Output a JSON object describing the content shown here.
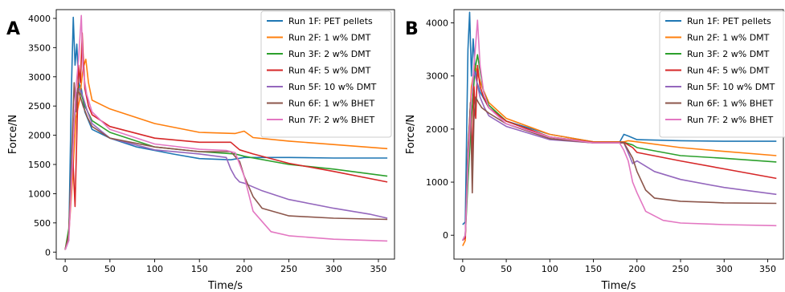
{
  "chart_data": [
    {
      "type": "line",
      "panel_label": "A",
      "xlabel": "Time/s",
      "ylabel": "Force/N",
      "xlim": [
        -10,
        368
      ],
      "ylim": [
        -120,
        4150
      ],
      "xticks": [
        0,
        50,
        100,
        150,
        200,
        250,
        300,
        350
      ],
      "yticks": [
        0,
        500,
        1000,
        1500,
        2000,
        2500,
        3000,
        3500,
        4000
      ],
      "grid": false,
      "legend_position": "top-right",
      "series": [
        {
          "name": "Run 1F: PET pellets",
          "color": "#1f77b4",
          "x": [
            0,
            4,
            7,
            9,
            11,
            13,
            15,
            18,
            22,
            30,
            50,
            80,
            120,
            150,
            185,
            200,
            250,
            300,
            360
          ],
          "y": [
            40,
            200,
            2800,
            4020,
            3200,
            3560,
            2900,
            2800,
            2400,
            2100,
            1950,
            1800,
            1680,
            1600,
            1580,
            1620,
            1620,
            1610,
            1610
          ]
        },
        {
          "name": "Run 2F: 1 w% DMT",
          "color": "#ff7f0e",
          "x": [
            0,
            4,
            8,
            12,
            16,
            20,
            23,
            26,
            30,
            50,
            100,
            150,
            190,
            200,
            210,
            250,
            300,
            360
          ],
          "y": [
            40,
            300,
            1200,
            2300,
            2600,
            3150,
            3300,
            2900,
            2600,
            2450,
            2200,
            2050,
            2030,
            2070,
            1960,
            1900,
            1840,
            1770
          ]
        },
        {
          "name": "Run 3F: 2 w% DMT",
          "color": "#2ca02c",
          "x": [
            0,
            4,
            8,
            12,
            15,
            18,
            22,
            30,
            50,
            100,
            150,
            190,
            200,
            250,
            300,
            360
          ],
          "y": [
            40,
            400,
            1700,
            2600,
            2850,
            2700,
            2500,
            2250,
            2050,
            1800,
            1720,
            1680,
            1640,
            1500,
            1420,
            1300
          ]
        },
        {
          "name": "Run 4F: 5 w% DMT",
          "color": "#d62728",
          "x": [
            0,
            4,
            8,
            11,
            13,
            15,
            17,
            19,
            20,
            22,
            26,
            30,
            50,
            100,
            150,
            185,
            195,
            210,
            250,
            300,
            360
          ],
          "y": [
            40,
            300,
            1800,
            780,
            2000,
            3200,
            2900,
            3750,
            3400,
            2800,
            2500,
            2350,
            2150,
            1950,
            1880,
            1880,
            1750,
            1680,
            1520,
            1380,
            1200
          ]
        },
        {
          "name": "Run 5F: 10 w% DMT",
          "color": "#9467bd",
          "x": [
            0,
            4,
            8,
            12,
            16,
            20,
            25,
            30,
            50,
            100,
            150,
            180,
            185,
            190,
            195,
            200,
            220,
            250,
            300,
            340,
            360
          ],
          "y": [
            40,
            250,
            1800,
            2700,
            2800,
            2650,
            2400,
            2200,
            1950,
            1750,
            1680,
            1620,
            1420,
            1280,
            1200,
            1180,
            1050,
            900,
            750,
            650,
            580
          ]
        },
        {
          "name": "Run 6F: 1 w% BHET",
          "color": "#8c564b",
          "x": [
            0,
            4,
            8,
            10,
            12,
            14,
            16,
            20,
            25,
            30,
            50,
            100,
            150,
            185,
            195,
            200,
            210,
            220,
            250,
            300,
            360
          ],
          "y": [
            40,
            300,
            2000,
            2900,
            2400,
            2800,
            2700,
            2500,
            2300,
            2150,
            1950,
            1800,
            1720,
            1720,
            1550,
            1300,
            950,
            750,
            620,
            580,
            560
          ]
        },
        {
          "name": "Run 7F: 2 w% BHET",
          "color": "#e377c2",
          "x": [
            0,
            4,
            8,
            12,
            15,
            18,
            20,
            24,
            30,
            50,
            100,
            150,
            180,
            190,
            200,
            210,
            230,
            250,
            300,
            360
          ],
          "y": [
            40,
            200,
            1500,
            2800,
            3300,
            4050,
            3100,
            2700,
            2400,
            2100,
            1850,
            1760,
            1740,
            1700,
            1300,
            700,
            350,
            280,
            220,
            190
          ]
        }
      ]
    },
    {
      "type": "line",
      "panel_label": "B",
      "xlabel": "Time/s",
      "ylabel": "Force/N",
      "xlim": [
        -10,
        368
      ],
      "ylim": [
        -450,
        4250
      ],
      "xticks": [
        0,
        50,
        100,
        150,
        200,
        250,
        300,
        350
      ],
      "yticks": [
        0,
        1000,
        2000,
        3000,
        4000
      ],
      "grid": false,
      "legend_position": "top-right",
      "series": [
        {
          "name": "Run 1F: PET pellets",
          "color": "#1f77b4",
          "x": [
            0,
            3,
            6,
            8,
            10,
            12,
            14,
            16,
            20,
            30,
            50,
            100,
            150,
            180,
            185,
            190,
            200,
            250,
            300,
            360
          ],
          "y": [
            200,
            250,
            3500,
            4200,
            3000,
            3700,
            3200,
            2900,
            2700,
            2400,
            2150,
            1900,
            1760,
            1750,
            1900,
            1870,
            1800,
            1780,
            1770,
            1770
          ]
        },
        {
          "name": "Run 2F: 1 w% DMT",
          "color": "#ff7f0e",
          "x": [
            0,
            3,
            6,
            10,
            14,
            18,
            22,
            30,
            50,
            100,
            150,
            185,
            190,
            200,
            250,
            300,
            360
          ],
          "y": [
            -200,
            -100,
            1500,
            2800,
            3200,
            3000,
            2800,
            2500,
            2200,
            1900,
            1760,
            1760,
            1780,
            1760,
            1650,
            1580,
            1500
          ]
        },
        {
          "name": "Run 3F: 2 w% DMT",
          "color": "#2ca02c",
          "x": [
            0,
            3,
            6,
            10,
            14,
            17,
            20,
            24,
            30,
            50,
            100,
            150,
            185,
            195,
            200,
            250,
            300,
            360
          ],
          "y": [
            -100,
            0,
            1000,
            2200,
            3100,
            3400,
            3100,
            2700,
            2450,
            2150,
            1850,
            1750,
            1750,
            1700,
            1650,
            1500,
            1450,
            1380
          ]
        },
        {
          "name": "Run 4F: 5 w% DMT",
          "color": "#d62728",
          "x": [
            0,
            3,
            6,
            9,
            11,
            13,
            15,
            17,
            20,
            24,
            30,
            50,
            100,
            150,
            185,
            195,
            200,
            250,
            300,
            360
          ],
          "y": [
            -100,
            -50,
            1600,
            2500,
            1400,
            2800,
            2200,
            3200,
            2800,
            2600,
            2400,
            2150,
            1850,
            1750,
            1750,
            1650,
            1560,
            1400,
            1250,
            1070
          ]
        },
        {
          "name": "Run 5F: 10 w% DMT",
          "color": "#9467bd",
          "x": [
            0,
            3,
            6,
            10,
            13,
            16,
            20,
            25,
            30,
            50,
            100,
            150,
            185,
            190,
            195,
            200,
            220,
            250,
            300,
            360
          ],
          "y": [
            -100,
            0,
            1500,
            2600,
            3100,
            2900,
            2600,
            2400,
            2250,
            2050,
            1800,
            1740,
            1740,
            1550,
            1350,
            1400,
            1200,
            1050,
            900,
            770
          ]
        },
        {
          "name": "Run 6F: 1 w% BHET",
          "color": "#8c564b",
          "x": [
            0,
            3,
            6,
            9,
            11,
            13,
            15,
            18,
            22,
            30,
            50,
            100,
            150,
            185,
            190,
            195,
            200,
            210,
            220,
            250,
            300,
            360
          ],
          "y": [
            -100,
            0,
            1500,
            2500,
            800,
            2200,
            2600,
            2500,
            2400,
            2300,
            2100,
            1820,
            1740,
            1740,
            1600,
            1450,
            1200,
            850,
            700,
            640,
            610,
            600
          ]
        },
        {
          "name": "Run 7F: 2 w% BHET",
          "color": "#e377c2",
          "x": [
            0,
            3,
            6,
            10,
            14,
            17,
            20,
            24,
            30,
            50,
            100,
            150,
            180,
            185,
            190,
            195,
            200,
            210,
            230,
            250,
            300,
            360
          ],
          "y": [
            -100,
            0,
            1300,
            2600,
            3400,
            4050,
            3200,
            2700,
            2400,
            2100,
            1850,
            1740,
            1740,
            1600,
            1400,
            1000,
            800,
            450,
            280,
            230,
            200,
            180
          ]
        }
      ]
    }
  ]
}
